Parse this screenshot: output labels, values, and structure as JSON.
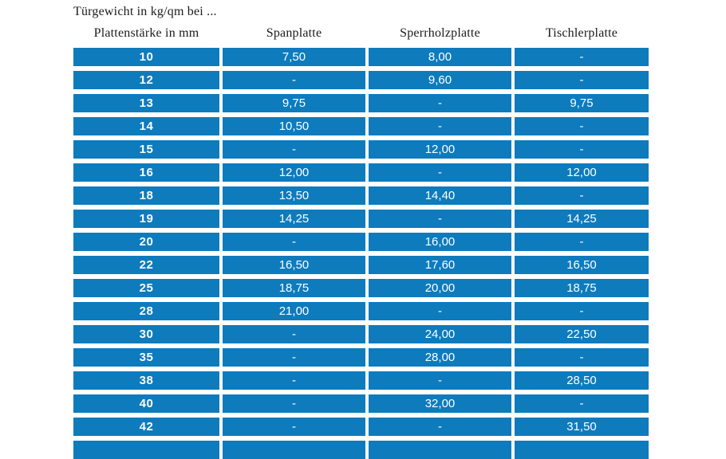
{
  "page": {
    "title": "Türgewicht in kg/qm bei ..."
  },
  "colors": {
    "row_blue": "#0e7bbd",
    "cell_text": "#ffffff",
    "heading_text": "#1b1b1b",
    "background": "#ffffff"
  },
  "table": {
    "empty_cell_symbol": "-"
  },
  "chart_data": {
    "type": "table",
    "title": "Türgewicht in kg/qm bei ...",
    "columns": [
      "Plattenstärke in mm",
      "Spanplatte",
      "Sperrholzplatte",
      "Tischlerplatte"
    ],
    "rows": [
      [
        "10",
        "7,50",
        "8,00",
        "-"
      ],
      [
        "12",
        "-",
        "9,60",
        "-"
      ],
      [
        "13",
        "9,75",
        "-",
        "9,75"
      ],
      [
        "14",
        "10,50",
        "-",
        "-"
      ],
      [
        "15",
        "-",
        "12,00",
        "-"
      ],
      [
        "16",
        "12,00",
        "-",
        "12,00"
      ],
      [
        "18",
        "13,50",
        "14,40",
        "-"
      ],
      [
        "19",
        "14,25",
        "-",
        "14,25"
      ],
      [
        "20",
        "-",
        "16,00",
        "-"
      ],
      [
        "22",
        "16,50",
        "17,60",
        "16,50"
      ],
      [
        "25",
        "18,75",
        "20,00",
        "18,75"
      ],
      [
        "28",
        "21,00",
        "-",
        "-"
      ],
      [
        "30",
        "-",
        "24,00",
        "22,50"
      ],
      [
        "35",
        "-",
        "28,00",
        "-"
      ],
      [
        "38",
        "-",
        "-",
        "28,50"
      ],
      [
        "40",
        "-",
        "32,00",
        "-"
      ],
      [
        "42",
        "-",
        "-",
        "31,50"
      ]
    ],
    "layout": {
      "header_position": "top",
      "grid": "white gaps between solid blue cells",
      "partial_row_clipped_at_bottom": true
    }
  }
}
